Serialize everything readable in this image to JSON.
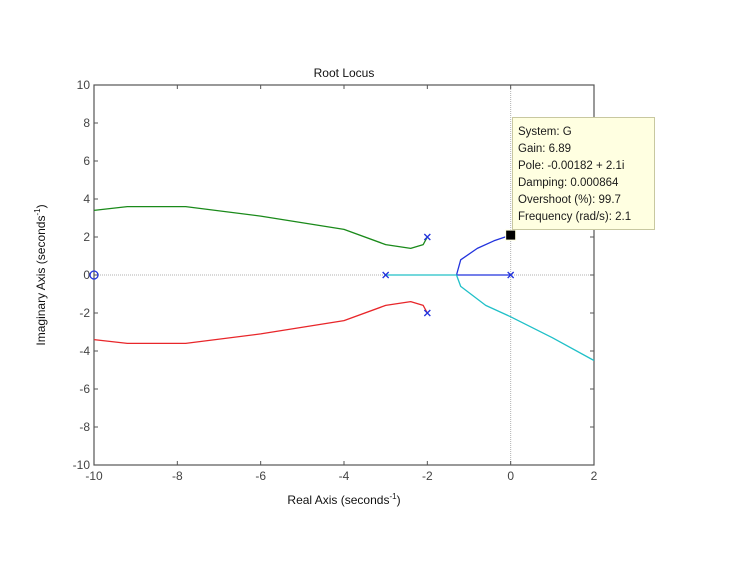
{
  "chart_data": {
    "type": "line",
    "title": "Root Locus",
    "xlabel": "Real Axis (seconds^-1)",
    "ylabel": "Imaginary Axis (seconds^-1)",
    "xlim": [
      -10,
      2
    ],
    "ylim": [
      -10,
      10
    ],
    "xticks": [
      -10,
      -8,
      -6,
      -4,
      -2,
      0,
      2
    ],
    "yticks": [
      -10,
      -8,
      -6,
      -4,
      -2,
      0,
      2,
      4,
      6,
      8,
      10
    ],
    "grid": false,
    "poles": [
      [
        -2,
        2
      ],
      [
        -2,
        -2
      ],
      [
        -3,
        0
      ],
      [
        0,
        0
      ]
    ],
    "zeros": [
      [
        -10,
        0
      ]
    ],
    "series": [
      {
        "name": "branch-green",
        "color": "#1a8a1a",
        "points": [
          [
            -2,
            2
          ],
          [
            -2.1,
            1.6
          ],
          [
            -2.4,
            1.4
          ],
          [
            -3,
            1.6
          ],
          [
            -4,
            2.4
          ],
          [
            -6,
            3.1
          ],
          [
            -7.8,
            3.6
          ],
          [
            -9.2,
            3.6
          ],
          [
            -10,
            3.4
          ]
        ]
      },
      {
        "name": "branch-red",
        "color": "#e8262a",
        "points": [
          [
            -2,
            -2
          ],
          [
            -2.1,
            -1.6
          ],
          [
            -2.4,
            -1.4
          ],
          [
            -3,
            -1.6
          ],
          [
            -4,
            -2.4
          ],
          [
            -6,
            -3.1
          ],
          [
            -7.8,
            -3.6
          ],
          [
            -9.2,
            -3.6
          ],
          [
            -10,
            -3.4
          ]
        ]
      },
      {
        "name": "branch-blue",
        "color": "#2233dd",
        "points": [
          [
            0,
            0
          ],
          [
            -1.3,
            0
          ],
          [
            -1.2,
            0.8
          ],
          [
            -0.8,
            1.4
          ],
          [
            -0.4,
            1.8
          ],
          [
            0,
            2.1
          ]
        ]
      },
      {
        "name": "branch-cyan",
        "color": "#20c0c8",
        "points": [
          [
            -3,
            0
          ],
          [
            -1.3,
            0
          ],
          [
            -1.2,
            -0.6
          ],
          [
            -0.6,
            -1.6
          ],
          [
            0,
            -2.2
          ],
          [
            1,
            -3.3
          ],
          [
            2,
            -4.5
          ]
        ]
      }
    ],
    "annotation": {
      "marker": [
        0,
        2.1
      ],
      "lines": [
        "System: G",
        "Gain: 6.89",
        "Pole: -0.00182 + 2.1i",
        "Damping: 0.000864",
        "Overshoot (%): 99.7",
        "Frequency (rad/s): 2.1"
      ]
    }
  },
  "labels": {
    "title": "Root Locus",
    "xlabel_main": "Real Axis (seconds",
    "ylabel_main": "Imaginary Axis (seconds",
    "superscript": "-1",
    "close_paren": ")"
  }
}
